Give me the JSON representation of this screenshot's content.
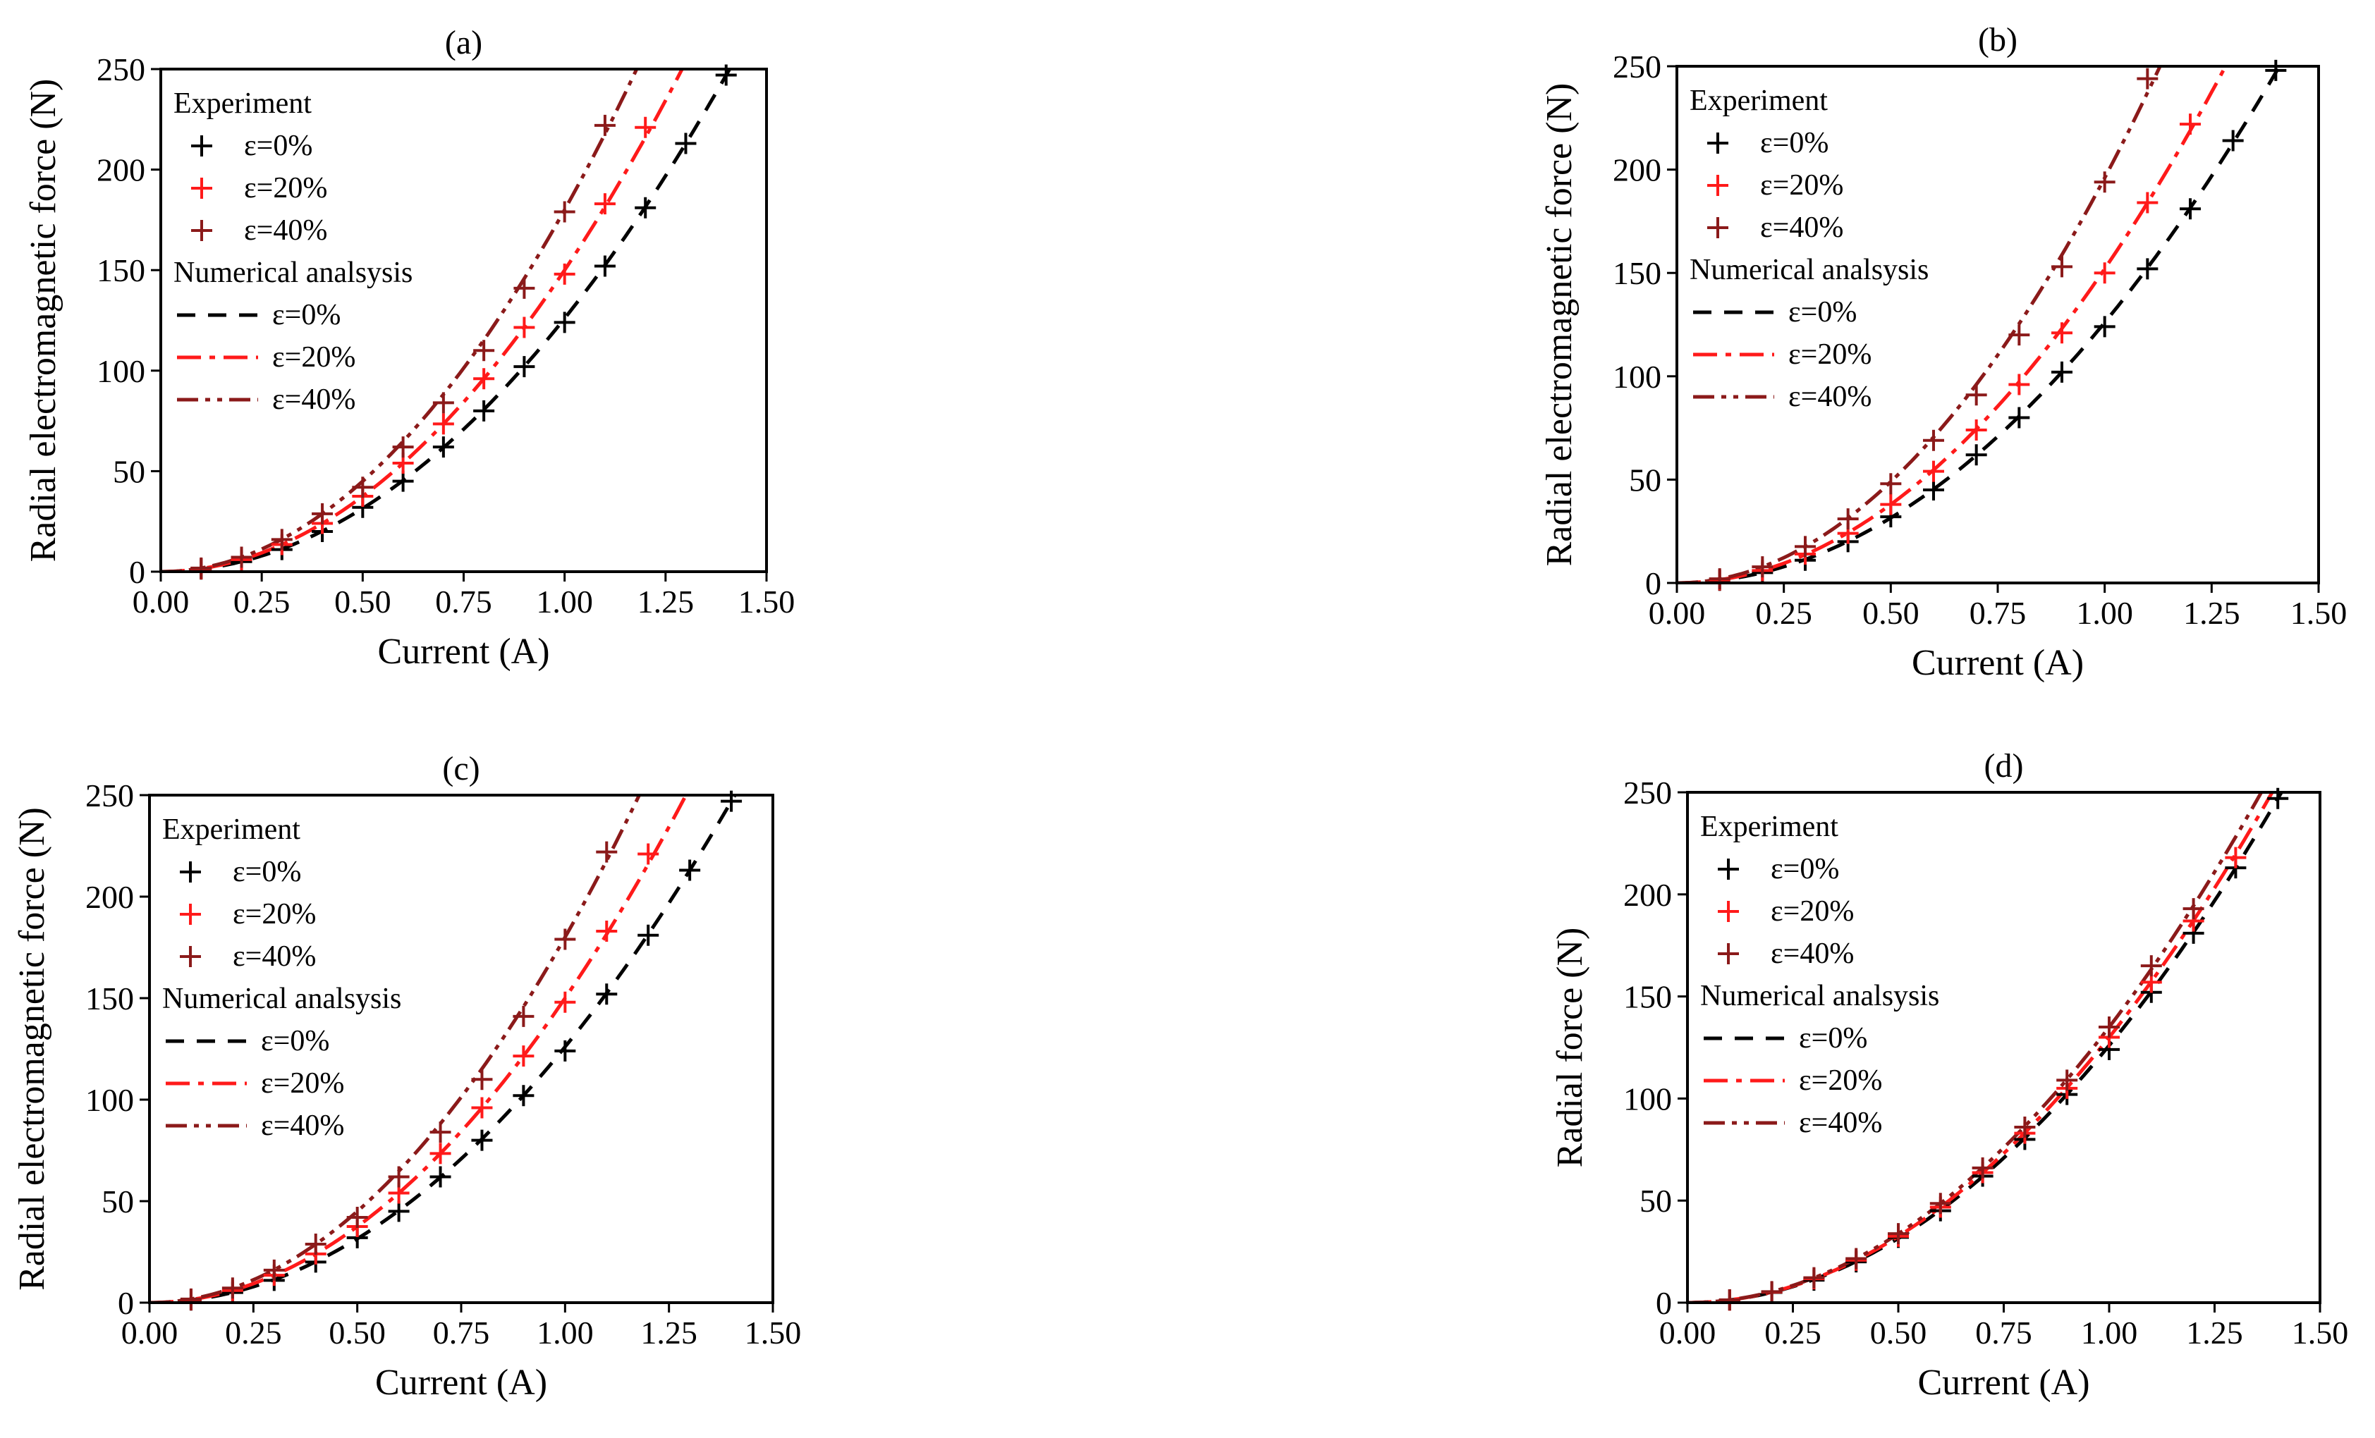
{
  "figure": {
    "panels": [
      "a",
      "b",
      "c",
      "d"
    ]
  },
  "chart_data": [
    {
      "panel": "(a)",
      "type": "line",
      "xlabel": "Current (A)",
      "ylabel": "Radial electromagnetic force (N)",
      "xlim": [
        0,
        1.5
      ],
      "ylim": [
        0,
        250
      ],
      "xticks": [
        "0.00",
        "0.25",
        "0.50",
        "0.75",
        "1.00",
        "1.25",
        "1.50"
      ],
      "yticks": [
        "0",
        "50",
        "100",
        "150",
        "200",
        "250"
      ],
      "legend": {
        "experiment_title": "Experiment",
        "numerical_title": "Numerical analsysis",
        "labels": [
          "ε=0%",
          "ε=20%",
          "ε=40%"
        ],
        "placement": "top-left"
      },
      "series": [
        {
          "name": "ε=0%",
          "color": "#000000",
          "dash": "dashed",
          "coef": 126,
          "experiment_x": [
            0.1,
            0.2,
            0.3,
            0.4,
            0.5,
            0.6,
            0.7,
            0.8,
            0.9,
            1.0,
            1.1,
            1.2,
            1.3,
            1.4
          ],
          "experiment_y": [
            1.3,
            5,
            11,
            20,
            32,
            45,
            62,
            80,
            102,
            124,
            152,
            181,
            213,
            247
          ]
        },
        {
          "name": "ε=20%",
          "color": "#ff1a1a",
          "dash": "dashdot",
          "coef": 150,
          "experiment_x": [
            0.1,
            0.2,
            0.3,
            0.4,
            0.5,
            0.6,
            0.7,
            0.8,
            0.9,
            1.0,
            1.1,
            1.2
          ],
          "experiment_y": [
            1.5,
            6,
            13.5,
            24,
            37.5,
            54,
            73.5,
            96,
            121.5,
            148,
            183,
            221
          ]
        },
        {
          "name": "ε=40%",
          "color": "#8b1a1a",
          "dash": "dashdotdot",
          "coef": 180,
          "experiment_x": [
            0.1,
            0.2,
            0.3,
            0.4,
            0.5,
            0.6,
            0.7,
            0.8,
            0.9,
            1.0,
            1.1
          ],
          "experiment_y": [
            1.8,
            7.2,
            16,
            28.8,
            42,
            62,
            84,
            110,
            141,
            179,
            222
          ]
        }
      ]
    },
    {
      "panel": "(b)",
      "type": "line",
      "xlabel": "Current (A)",
      "ylabel": "Radial electromagnetic force (N)",
      "xlim": [
        0,
        1.5
      ],
      "ylim": [
        0,
        250
      ],
      "xticks": [
        "0.00",
        "0.25",
        "0.50",
        "0.75",
        "1.00",
        "1.25",
        "1.50"
      ],
      "yticks": [
        "0",
        "50",
        "100",
        "150",
        "200",
        "250"
      ],
      "legend": {
        "experiment_title": "Experiment",
        "numerical_title": "Numerical analsysis",
        "labels": [
          "ε=0%",
          "ε=20%",
          "ε=40%"
        ],
        "placement": "top-left"
      },
      "series": [
        {
          "name": "ε=0%",
          "color": "#000000",
          "dash": "dashed",
          "coef": 126,
          "experiment_x": [
            0.1,
            0.2,
            0.3,
            0.4,
            0.5,
            0.6,
            0.7,
            0.8,
            0.9,
            1.0,
            1.1,
            1.2,
            1.3,
            1.4
          ],
          "experiment_y": [
            1.3,
            5,
            11,
            20,
            32,
            45,
            62,
            80,
            102,
            124,
            152,
            181,
            214,
            248
          ]
        },
        {
          "name": "ε=20%",
          "color": "#ff1a1a",
          "dash": "dashdot",
          "coef": 152,
          "experiment_x": [
            0.1,
            0.2,
            0.3,
            0.4,
            0.5,
            0.6,
            0.7,
            0.8,
            0.9,
            1.0,
            1.1,
            1.2
          ],
          "experiment_y": [
            1.5,
            6,
            14,
            24,
            38,
            54,
            74,
            96,
            121,
            150,
            184,
            222
          ]
        },
        {
          "name": "ε=40%",
          "color": "#8b1a1a",
          "dash": "dashdotdot",
          "coef": 196,
          "experiment_x": [
            0.1,
            0.2,
            0.3,
            0.4,
            0.5,
            0.6,
            0.7,
            0.8,
            0.9,
            1.0,
            1.1
          ],
          "experiment_y": [
            2,
            7.8,
            17.6,
            31,
            48,
            69,
            91,
            120,
            153,
            194,
            244
          ]
        }
      ]
    },
    {
      "panel": "(c)",
      "type": "line",
      "xlabel": "Current (A)",
      "ylabel": "Radial electromagnetic force (N)",
      "xlim": [
        0,
        1.5
      ],
      "ylim": [
        0,
        250
      ],
      "xticks": [
        "0.00",
        "0.25",
        "0.50",
        "0.75",
        "1.00",
        "1.25",
        "1.50"
      ],
      "yticks": [
        "0",
        "50",
        "100",
        "150",
        "200",
        "250"
      ],
      "legend": {
        "experiment_title": "Experiment",
        "numerical_title": "Numerical analsysis",
        "labels": [
          "ε=0%",
          "ε=20%",
          "ε=40%"
        ],
        "placement": "top-left"
      },
      "series": [
        {
          "name": "ε=0%",
          "color": "#000000",
          "dash": "dashed",
          "coef": 126,
          "experiment_x": [
            0.1,
            0.2,
            0.3,
            0.4,
            0.5,
            0.6,
            0.7,
            0.8,
            0.9,
            1.0,
            1.1,
            1.2,
            1.3,
            1.4
          ],
          "experiment_y": [
            1.3,
            5,
            11,
            20,
            32,
            45,
            62,
            80,
            102,
            124,
            152,
            181,
            213,
            247
          ]
        },
        {
          "name": "ε=20%",
          "color": "#ff1a1a",
          "dash": "dashdot",
          "coef": 150,
          "experiment_x": [
            0.1,
            0.2,
            0.3,
            0.4,
            0.5,
            0.6,
            0.7,
            0.8,
            0.9,
            1.0,
            1.1,
            1.2
          ],
          "experiment_y": [
            1.5,
            6,
            13.5,
            24,
            37.5,
            54,
            73.5,
            96,
            121.5,
            148,
            183,
            221
          ]
        },
        {
          "name": "ε=40%",
          "color": "#8b1a1a",
          "dash": "dashdotdot",
          "coef": 180,
          "experiment_x": [
            0.1,
            0.2,
            0.3,
            0.4,
            0.5,
            0.6,
            0.7,
            0.8,
            0.9,
            1.0,
            1.1
          ],
          "experiment_y": [
            1.8,
            7.2,
            16,
            28.8,
            42,
            62,
            84,
            110,
            141,
            179,
            222
          ]
        }
      ]
    },
    {
      "panel": "(d)",
      "type": "line",
      "xlabel": "Current (A)",
      "ylabel": "Radial force (N)",
      "xlim": [
        0,
        1.5
      ],
      "ylim": [
        0,
        250
      ],
      "xticks": [
        "0.00",
        "0.25",
        "0.50",
        "0.75",
        "1.00",
        "1.25",
        "1.50"
      ],
      "yticks": [
        "0",
        "50",
        "100",
        "150",
        "200",
        "250"
      ],
      "legend": {
        "experiment_title": "Experiment",
        "numerical_title": "Numerical analsysis",
        "labels": [
          "ε=0%",
          "ε=20%",
          "ε=40%"
        ],
        "placement": "top-left"
      },
      "series": [
        {
          "name": "ε=0%",
          "color": "#000000",
          "dash": "dashed",
          "coef": 126,
          "experiment_x": [
            0.1,
            0.2,
            0.3,
            0.4,
            0.5,
            0.6,
            0.7,
            0.8,
            0.9,
            1.0,
            1.1,
            1.2,
            1.3,
            1.4
          ],
          "experiment_y": [
            1.3,
            5,
            11,
            20,
            32,
            45,
            62,
            80,
            102,
            124,
            152,
            181,
            213,
            247
          ]
        },
        {
          "name": "ε=20%",
          "color": "#ff1a1a",
          "dash": "dashdot",
          "coef": 130,
          "experiment_x": [
            0.1,
            0.2,
            0.3,
            0.4,
            0.5,
            0.6,
            0.7,
            0.8,
            0.9,
            1.0,
            1.1,
            1.2,
            1.3
          ],
          "experiment_y": [
            1.3,
            5.2,
            11.7,
            20.8,
            32.5,
            46.8,
            63.7,
            83,
            105,
            130,
            157,
            187,
            218
          ]
        },
        {
          "name": "ε=40%",
          "color": "#8b1a1a",
          "dash": "dashdotdot",
          "coef": 135,
          "experiment_x": [
            0.1,
            0.2,
            0.3,
            0.4,
            0.5,
            0.6,
            0.7,
            0.8,
            0.9,
            1.0,
            1.1,
            1.2
          ],
          "experiment_y": [
            1.4,
            5.4,
            12.2,
            21.6,
            33.8,
            48.6,
            66,
            86,
            109,
            135,
            165,
            193
          ]
        }
      ]
    }
  ]
}
